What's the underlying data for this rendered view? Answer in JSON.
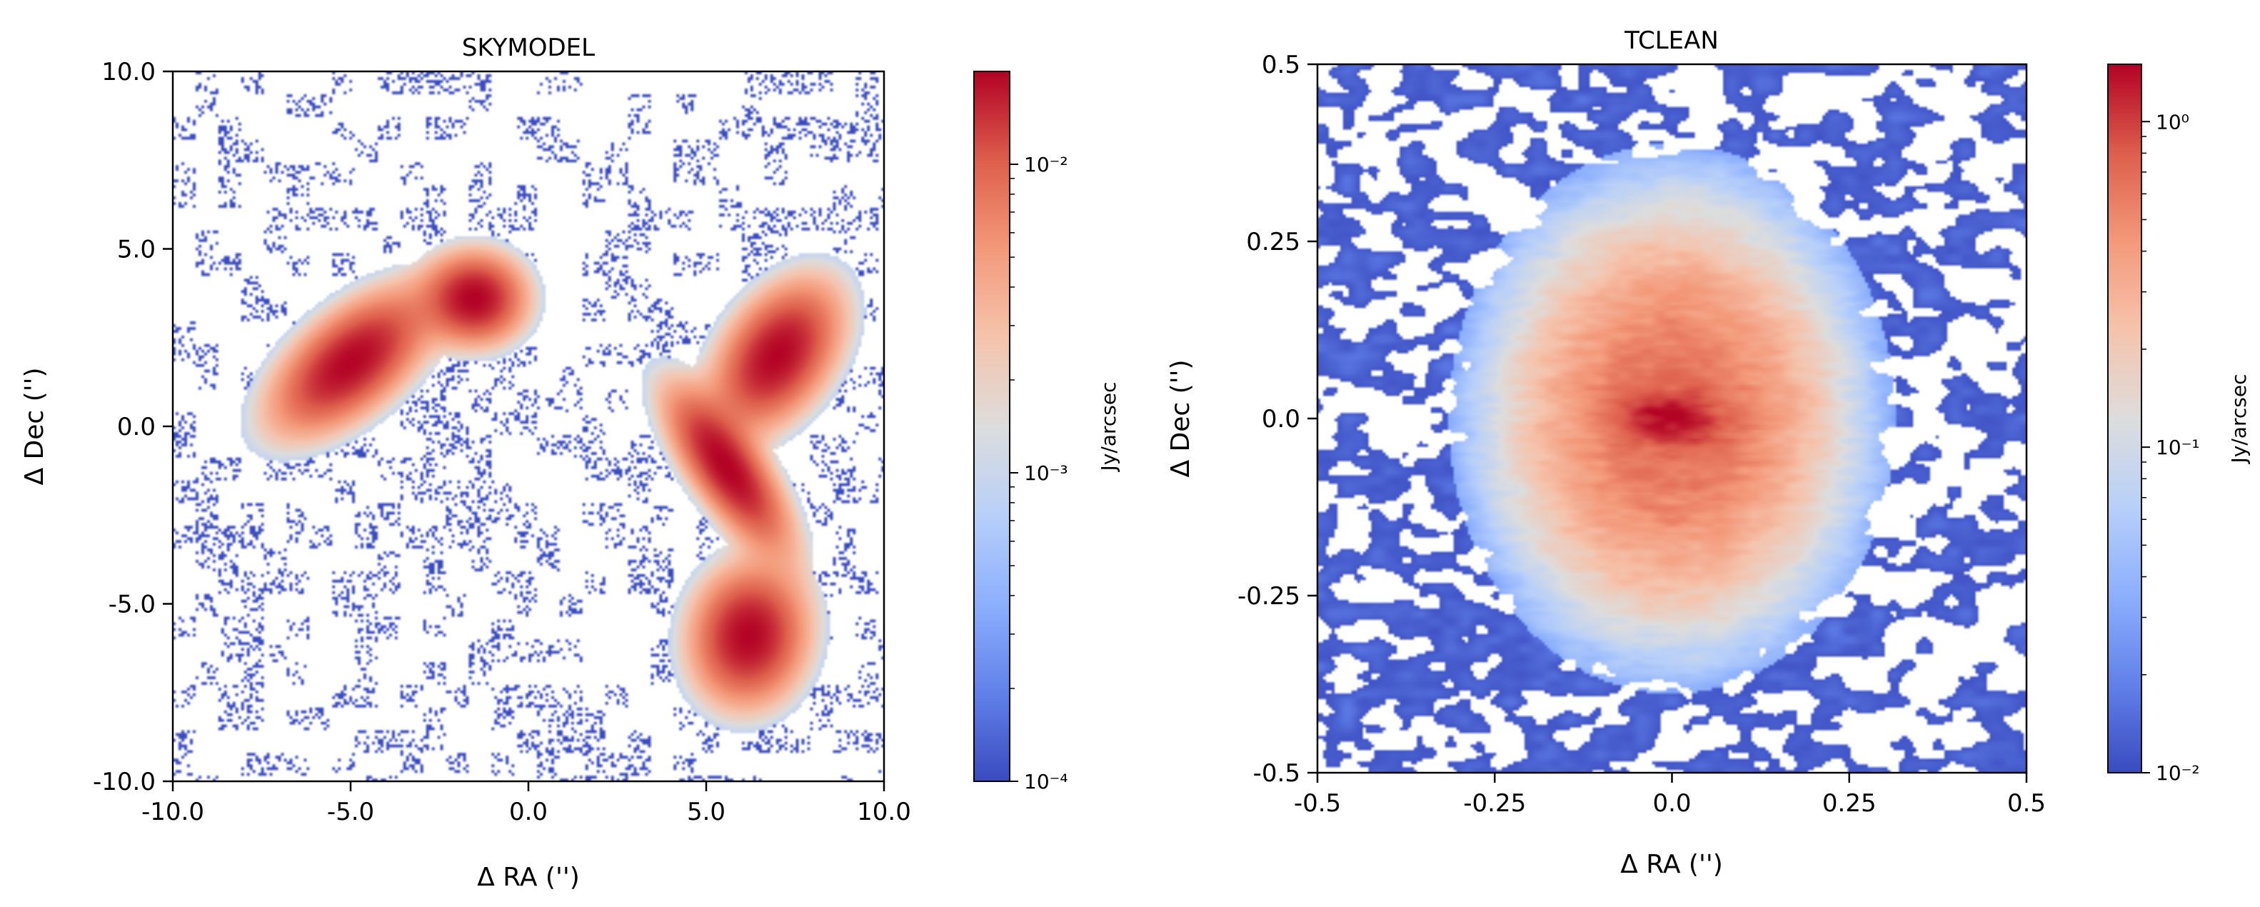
{
  "chart_data": [
    {
      "type": "heatmap",
      "title": "SKYMODEL",
      "xlabel": "Δ RA ('')",
      "ylabel": "Δ Dec ('')",
      "xlim": [
        -10.0,
        10.0
      ],
      "ylim": [
        -10.0,
        10.0
      ],
      "xticks": [
        -10.0,
        -5.0,
        0.0,
        5.0,
        10.0
      ],
      "xtick_labels": [
        "-10.0",
        "-5.0",
        "0.0",
        "5.0",
        "10.0"
      ],
      "yticks": [
        -10.0,
        -5.0,
        0.0,
        5.0,
        10.0
      ],
      "ytick_labels": [
        "-10.0",
        "-5.0",
        "0.0",
        "5.0",
        "10.0"
      ],
      "colormap": "coolwarm",
      "colorbar": {
        "label": "Jy/arcsec",
        "scale": "log",
        "range": [
          0.0001,
          0.02
        ],
        "ticks": [
          0.0001,
          0.001,
          0.01
        ],
        "tick_labels": [
          "10⁻⁴",
          "10⁻³",
          "10⁻²"
        ]
      },
      "sources": [
        {
          "name": "elongated source left",
          "x": -5.0,
          "y": 1.8,
          "sigma_major": 1.5,
          "sigma_minor": 0.75,
          "angle_deg": 40,
          "peak": 0.02
        },
        {
          "name": "round source top",
          "x": -1.5,
          "y": 3.6,
          "sigma_major": 0.8,
          "sigma_minor": 0.72,
          "angle_deg": 0,
          "peak": 0.02
        },
        {
          "name": "elongated source right",
          "x": 7.0,
          "y": 2.0,
          "sigma_major": 1.3,
          "sigma_minor": 0.8,
          "angle_deg": 55,
          "peak": 0.02
        },
        {
          "name": "tilted source middle",
          "x": 5.6,
          "y": -1.2,
          "sigma_major": 1.5,
          "sigma_minor": 0.55,
          "angle_deg": -55,
          "peak": 0.02
        },
        {
          "name": "round source bottom",
          "x": 6.2,
          "y": -5.9,
          "sigma_major": 1.1,
          "sigma_minor": 0.9,
          "angle_deg": 80,
          "peak": 0.02
        }
      ]
    },
    {
      "type": "heatmap",
      "title": "TCLEAN",
      "xlabel": "Δ RA ('')",
      "ylabel": "Δ Dec ('')",
      "xlim": [
        -0.5,
        0.5
      ],
      "ylim": [
        -0.5,
        0.5
      ],
      "xticks": [
        -0.5,
        -0.25,
        0.0,
        0.25,
        0.5
      ],
      "xtick_labels": [
        "-0.5",
        "-0.25",
        "0.0",
        "0.25",
        "0.5"
      ],
      "yticks": [
        -0.5,
        -0.25,
        0.0,
        0.25,
        0.5
      ],
      "ytick_labels": [
        "-0.5",
        "-0.25",
        "0.0",
        "0.25",
        "0.5"
      ],
      "colormap": "coolwarm",
      "colorbar": {
        "label": "Jy/arcsec",
        "scale": "log",
        "range": [
          0.01,
          1.5
        ],
        "ticks": [
          0.01,
          0.1,
          1.0
        ],
        "tick_labels": [
          "10⁻²",
          "10⁻¹",
          "10⁰"
        ]
      },
      "source": {
        "x": 0.0,
        "y": 0.0,
        "peak": 1.5,
        "half_width_x": 0.3,
        "half_width_y": 0.37
      }
    }
  ]
}
